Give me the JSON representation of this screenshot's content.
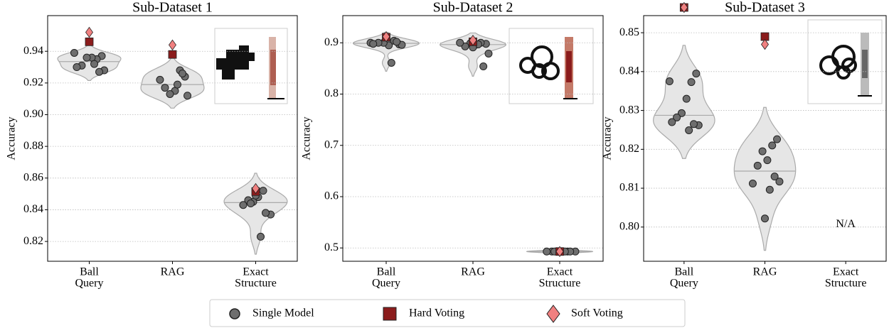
{
  "chart_data": [
    {
      "type": "violin",
      "title": "Sub-Dataset 1",
      "y_label": "Accuracy",
      "categories": [
        [
          "Ball",
          "Query"
        ],
        [
          "RAG"
        ],
        [
          "Exact",
          "Structure"
        ]
      ],
      "series": [
        {
          "name": "Single Model",
          "color": "#6e6e6e",
          "values": [
            [
              0.939,
              0.937,
              0.935,
              0.936,
              0.936,
              0.931,
              0.93,
              0.928,
              0.927,
              0.932
            ],
            [
              0.924,
              0.928,
              0.915,
              0.913,
              0.917,
              0.922,
              0.912,
              0.926,
              0.919
            ],
            [
              0.852,
              0.848,
              0.845,
              0.846,
              0.843,
              0.837,
              0.838,
              0.823,
              0.849,
              0.844
            ]
          ]
        },
        {
          "name": "Hard Voting",
          "color": "#8b1c1c",
          "values": [
            0.946,
            0.938,
            0.8515
          ]
        },
        {
          "name": "Soft Voting",
          "color": "#f08080",
          "values": [
            0.952,
            0.944,
            0.8534
          ]
        }
      ],
      "ylim": [
        0.8075,
        0.9625
      ],
      "yticks": [
        0.82,
        0.84,
        0.86,
        0.88,
        {
          "value": 0.9,
          "label": "0.90"
        },
        0.92,
        0.94
      ],
      "grid": true
    },
    {
      "type": "violin",
      "title": "Sub-Dataset 2",
      "y_label": "Accuracy",
      "categories": [
        [
          "Ball",
          "Query"
        ],
        [
          "RAG"
        ],
        [
          "Exact",
          "Structure"
        ]
      ],
      "series": [
        {
          "color": "#6e6e6e",
          "values": [
            [
              0.9,
              0.897,
              0.904,
              0.895,
              0.9,
              0.9,
              0.898,
              0.896,
              0.902,
              0.861
            ],
            [
              0.898,
              0.9,
              0.896,
              0.899,
              0.893,
              0.9,
              0.879,
              0.854,
              0.897,
              0.891
            ],
            [
              0.493,
              0.493,
              0.493,
              0.493,
              0.493,
              0.493,
              0.493,
              0.493,
              0.493,
              0.493
            ]
          ]
        },
        {
          "color": "#8b1c1c",
          "values": [
            0.911,
            0.902,
            0.493
          ]
        },
        {
          "color": "#f08080",
          "values": [
            0.912,
            0.905,
            0.493
          ]
        }
      ],
      "ylim": [
        0.474,
        0.953
      ],
      "yticks": [
        0.5,
        0.6,
        0.7,
        0.8,
        0.9
      ],
      "grid": true
    },
    {
      "type": "violin",
      "title": "Sub-Dataset 3",
      "y_label": "Accuracy",
      "categories": [
        [
          "Ball",
          "Query"
        ],
        [
          "RAG"
        ],
        [
          "Exact",
          "Structure"
        ]
      ],
      "series": [
        {
          "color": "#6e6e6e",
          "values": [
            [
              0.8375,
              0.8395,
              0.8373,
              0.833,
              0.8293,
              0.8282,
              0.827,
              0.8262,
              0.8265,
              0.8249
            ],
            [
              0.8226,
              0.821,
              0.8172,
              0.8195,
              0.8158,
              0.8112,
              0.8117,
              0.813,
              0.8096,
              0.8022
            ],
            null
          ]
        },
        {
          "color": "#8b1c1c",
          "values": [
            0.8565,
            0.849,
            null
          ]
        },
        {
          "color": "#f08080",
          "values": [
            0.8565,
            0.847,
            null
          ]
        }
      ],
      "ylim": [
        0.7912,
        0.8544
      ],
      "yticks": [
        {
          "value": 0.8,
          "label": "0.80"
        },
        0.81,
        0.82,
        0.83,
        0.84,
        0.85
      ],
      "grid": true,
      "annotation": "N/A"
    }
  ]
}
